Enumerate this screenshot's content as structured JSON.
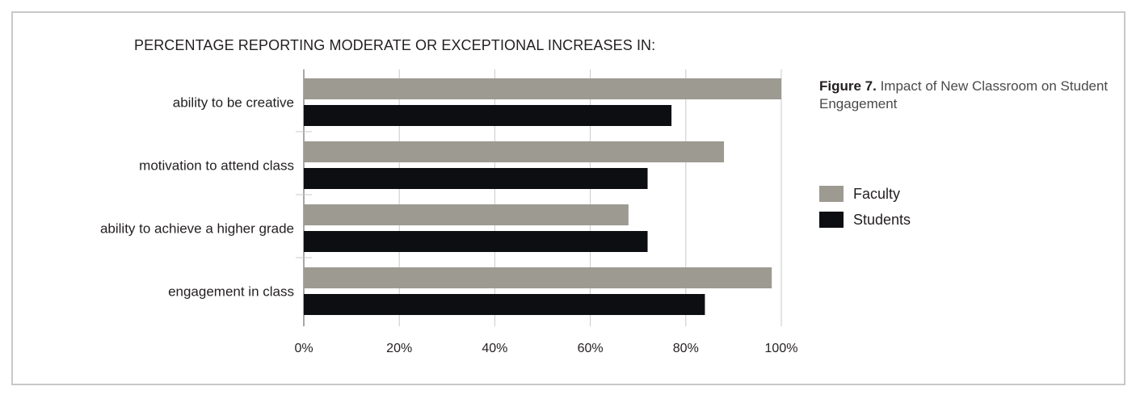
{
  "colors": {
    "faculty": "#9c9a91",
    "students": "#0d0e12",
    "grid": "#c8c8c8",
    "axis": "#8a8a8a",
    "text": "#231f20"
  },
  "chart_data": {
    "type": "bar",
    "orientation": "horizontal",
    "title": "PERCENTAGE REPORTING MODERATE OR EXCEPTIONAL INCREASES IN:",
    "categories": [
      "ability to be creative",
      "motivation to attend class",
      "ability to achieve a higher grade",
      "engagement in class"
    ],
    "series": [
      {
        "name": "Faculty",
        "values": [
          100,
          88,
          68,
          98
        ]
      },
      {
        "name": "Students",
        "values": [
          77,
          72,
          72,
          84
        ]
      }
    ],
    "xlim": [
      0,
      100
    ],
    "xticks": [
      "0%",
      "20%",
      "40%",
      "60%",
      "80%",
      "100%"
    ],
    "grid": true,
    "legend_position": "right",
    "caption_bold": "Figure 7.",
    "caption_text": " Impact of New Classroom on Student Engagement"
  }
}
